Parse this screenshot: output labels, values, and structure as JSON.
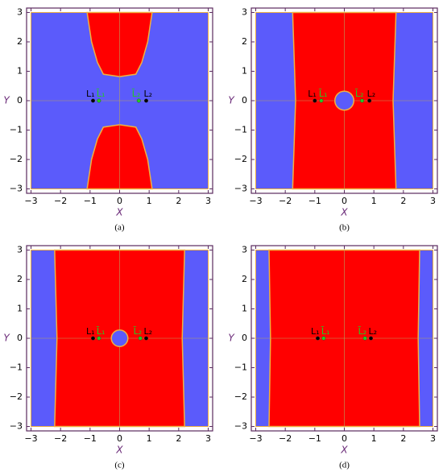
{
  "chart_data": [
    {
      "type": "region",
      "caption": "(a)",
      "xlabel": "X",
      "ylabel": "Y",
      "xlim": [
        -3.15,
        3.15
      ],
      "ylim": [
        -3.15,
        3.15
      ],
      "xticks": [
        {
          "value": -3,
          "label": "−3"
        },
        {
          "value": -2,
          "label": "−2"
        },
        {
          "value": -1,
          "label": "−1"
        },
        0,
        1,
        2,
        3
      ],
      "yticks": [
        {
          "value": -3,
          "label": "−3"
        },
        {
          "value": -2,
          "label": "−2"
        },
        {
          "value": -1,
          "label": "−1"
        },
        0,
        1,
        2,
        3
      ],
      "background": "#5b5bfb",
      "regions": [
        {
          "color": "#ff0000",
          "x": [
            -1.1,
            -0.95,
            -0.75,
            -0.55,
            0,
            0.55,
            0.75,
            0.95,
            1.1
          ],
          "y": [
            3,
            2,
            1.3,
            0.9,
            0.82,
            0.9,
            1.3,
            2,
            3
          ]
        },
        {
          "color": "#ff0000",
          "x": [
            -1.1,
            -0.95,
            -0.75,
            -0.55,
            0,
            0.55,
            0.75,
            0.95,
            1.1
          ],
          "y": [
            -3,
            -2,
            -1.3,
            -0.9,
            -0.82,
            -0.9,
            -1.3,
            -2,
            -3
          ]
        }
      ],
      "circles": [],
      "points": [
        {
          "name": "L₁",
          "color": "#000000",
          "x": -0.9,
          "y": 0
        },
        {
          "name": "L̄₁",
          "color": "#22cc22",
          "x": -0.7,
          "y": 0
        },
        {
          "name": "L̄₂",
          "color": "#22cc22",
          "x": 0.65,
          "y": 0
        },
        {
          "name": "L₂",
          "color": "#000000",
          "x": 0.9,
          "y": 0
        }
      ]
    },
    {
      "type": "region",
      "caption": "(b)",
      "xlabel": "X",
      "ylabel": "Y",
      "xlim": [
        -3.15,
        3.15
      ],
      "ylim": [
        -3.15,
        3.15
      ],
      "xticks": [
        {
          "value": -3,
          "label": "−3"
        },
        {
          "value": -2,
          "label": "−2"
        },
        {
          "value": -1,
          "label": "−1"
        },
        0,
        1,
        2,
        3
      ],
      "yticks": [
        {
          "value": -3,
          "label": "−3"
        },
        {
          "value": -2,
          "label": "−2"
        },
        {
          "value": -1,
          "label": "−1"
        },
        0,
        1,
        2,
        3
      ],
      "background": "#5b5bfb",
      "regions": [
        {
          "color": "#ff0000",
          "x": [
            -1.75,
            -1.65,
            -1.75,
            1.75,
            1.65,
            1.75
          ],
          "y": [
            3,
            0,
            -3,
            -3,
            0,
            3
          ]
        }
      ],
      "circles": [
        {
          "color": "#5b5bfb",
          "x": 0,
          "y": 0,
          "r": 0.32
        }
      ],
      "points": [
        {
          "name": "L₁",
          "color": "#000000",
          "x": -1.0,
          "y": 0
        },
        {
          "name": "L̄₁",
          "color": "#22cc22",
          "x": -0.78,
          "y": 0
        },
        {
          "name": "L̄₂",
          "color": "#22cc22",
          "x": 0.6,
          "y": 0
        },
        {
          "name": "L₂",
          "color": "#000000",
          "x": 0.85,
          "y": 0
        }
      ]
    },
    {
      "type": "region",
      "caption": "(c)",
      "xlabel": "X",
      "ylabel": "Y",
      "xlim": [
        -3.15,
        3.15
      ],
      "ylim": [
        -3.15,
        3.15
      ],
      "xticks": [
        {
          "value": -3,
          "label": "−3"
        },
        {
          "value": -2,
          "label": "−2"
        },
        {
          "value": -1,
          "label": "−1"
        },
        0,
        1,
        2,
        3
      ],
      "yticks": [
        {
          "value": -3,
          "label": "−3"
        },
        {
          "value": -2,
          "label": "−2"
        },
        {
          "value": -1,
          "label": "−1"
        },
        0,
        1,
        2,
        3
      ],
      "background": "#5b5bfb",
      "regions": [
        {
          "color": "#ff0000",
          "x": [
            -2.2,
            -2.12,
            -2.2,
            2.2,
            2.12,
            2.2
          ],
          "y": [
            3,
            0,
            -3,
            -3,
            0,
            3
          ]
        }
      ],
      "circles": [
        {
          "color": "#5b5bfb",
          "x": 0,
          "y": 0,
          "r": 0.28
        }
      ],
      "points": [
        {
          "name": "L₁",
          "color": "#000000",
          "x": -0.9,
          "y": 0
        },
        {
          "name": "L̄₁",
          "color": "#22cc22",
          "x": -0.7,
          "y": 0
        },
        {
          "name": "L̄₂",
          "color": "#22cc22",
          "x": 0.7,
          "y": 0
        },
        {
          "name": "L₂",
          "color": "#000000",
          "x": 0.9,
          "y": 0
        }
      ]
    },
    {
      "type": "region",
      "caption": "(d)",
      "xlabel": "X",
      "ylabel": "Y",
      "xlim": [
        -3.15,
        3.15
      ],
      "ylim": [
        -3.15,
        3.15
      ],
      "xticks": [
        {
          "value": -3,
          "label": "−3"
        },
        {
          "value": -2,
          "label": "−2"
        },
        {
          "value": -1,
          "label": "−1"
        },
        0,
        1,
        2,
        3
      ],
      "yticks": [
        {
          "value": -3,
          "label": "−3"
        },
        {
          "value": -2,
          "label": "−2"
        },
        {
          "value": -1,
          "label": "−1"
        },
        0,
        1,
        2,
        3
      ],
      "background": "#5b5bfb",
      "regions": [
        {
          "color": "#ff0000",
          "x": [
            -2.55,
            -2.5,
            -2.55,
            2.55,
            2.5,
            2.55
          ],
          "y": [
            3,
            0,
            -3,
            -3,
            0,
            3
          ]
        }
      ],
      "circles": [],
      "points": [
        {
          "name": "L₁",
          "color": "#000000",
          "x": -0.9,
          "y": 0
        },
        {
          "name": "L̄₁",
          "color": "#22cc22",
          "x": -0.7,
          "y": 0
        },
        {
          "name": "L̄₂",
          "color": "#22cc22",
          "x": 0.7,
          "y": 0
        },
        {
          "name": "L₂",
          "color": "#000000",
          "x": 0.9,
          "y": 0
        }
      ]
    }
  ]
}
